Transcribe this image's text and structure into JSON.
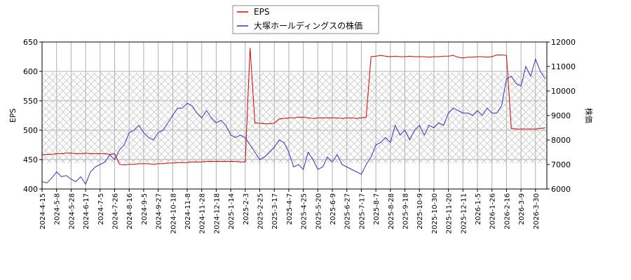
{
  "chart_data": {
    "type": "line",
    "categories": [
      "2024-4-15",
      null,
      null,
      "2024-5-8",
      null,
      null,
      "2024-5-28",
      null,
      null,
      "2024-6-17",
      null,
      null,
      "2024-7-5",
      null,
      null,
      "2024-7-26",
      null,
      null,
      "2024-8-16",
      null,
      null,
      "2024-9-5",
      null,
      null,
      "2024-9-27",
      null,
      null,
      "2024-10-18",
      null,
      null,
      "2024-11-8",
      null,
      null,
      "2024-11-28",
      null,
      null,
      "2024-12-18",
      null,
      null,
      "2025-1-14",
      null,
      null,
      "2025-2-3",
      null,
      null,
      "2025-2-25",
      null,
      null,
      "2025-3-17",
      null,
      null,
      "2025-4-7",
      null,
      null,
      "2025-4-25",
      null,
      null,
      "2025-5-20",
      null,
      null,
      "2025-6-9",
      null,
      null,
      "2025-6-27",
      null,
      null,
      "2025-7-17",
      null,
      null,
      "2025-8-7",
      null,
      null,
      "2025-8-28",
      null,
      null,
      "2025-9-18",
      null,
      null,
      "2025-10-9",
      null,
      null,
      "2025-10-30",
      null,
      null,
      "2025-11-20",
      null,
      null,
      "2025-12-11",
      null,
      null,
      "2026-1-5",
      null,
      null,
      "2026-1-26",
      null,
      null,
      "2026-2-16",
      null,
      null,
      "2026-3-9",
      null,
      null,
      "2026-3-30",
      null,
      null
    ],
    "series": [
      {
        "name": "EPS",
        "color": "#dd0000",
        "axis": "y",
        "values": [
          458,
          459,
          459,
          460,
          460,
          461,
          461,
          460,
          460,
          461,
          460,
          460,
          460,
          460,
          459,
          460,
          442,
          441,
          442,
          442,
          443,
          443,
          443,
          442,
          443,
          443,
          444,
          444,
          445,
          445,
          445,
          446,
          446,
          446,
          447,
          447,
          447,
          447,
          447,
          447,
          447,
          446,
          446,
          640,
          512,
          512,
          511,
          511,
          512,
          519,
          520,
          521,
          521,
          522,
          522,
          521,
          520,
          521,
          521,
          521,
          521,
          521,
          520,
          521,
          521,
          520,
          521,
          522,
          625,
          626,
          627,
          626,
          625,
          626,
          625,
          625,
          626,
          625,
          625,
          625,
          624,
          625,
          625,
          626,
          626,
          627,
          624,
          623,
          624,
          624,
          625,
          625,
          624,
          625,
          628,
          628,
          627,
          503,
          502,
          502,
          502,
          502,
          502,
          503,
          504
        ]
      },
      {
        "name": "大塚ホールディングスの株価",
        "color": "#3333cc",
        "axis": "y2",
        "values": [
          6300,
          6250,
          6450,
          6700,
          6500,
          6550,
          6400,
          6300,
          6500,
          6200,
          6700,
          6900,
          7000,
          7100,
          7400,
          7200,
          7600,
          7800,
          8300,
          8400,
          8600,
          8300,
          8100,
          8000,
          8300,
          8400,
          8700,
          9000,
          9300,
          9300,
          9500,
          9400,
          9100,
          8900,
          9200,
          8900,
          8700,
          8800,
          8600,
          8200,
          8100,
          8200,
          8100,
          7800,
          7500,
          7200,
          7300,
          7500,
          7700,
          8000,
          7900,
          7500,
          6900,
          7000,
          6800,
          7500,
          7200,
          6800,
          6900,
          7300,
          7100,
          7400,
          7000,
          6900,
          6800,
          6700,
          6600,
          7000,
          7300,
          7800,
          7900,
          8100,
          7900,
          8600,
          8200,
          8400,
          8000,
          8400,
          8600,
          8200,
          8600,
          8500,
          8700,
          8600,
          9100,
          9300,
          9200,
          9100,
          9100,
          9000,
          9200,
          9000,
          9300,
          9100,
          9100,
          9400,
          10500,
          10600,
          10300,
          10200,
          11000,
          10600,
          11300,
          10800,
          10500
        ]
      }
    ],
    "ylabel": "EPS",
    "y2label": "株価",
    "ylim": [
      400,
      650
    ],
    "yticks": [
      400,
      450,
      500,
      550,
      600,
      650
    ],
    "y2lim": [
      6000,
      12000
    ],
    "y2ticks": [
      6000,
      7000,
      8000,
      9000,
      10000,
      11000,
      12000
    ],
    "grid": true,
    "legend": "top"
  }
}
